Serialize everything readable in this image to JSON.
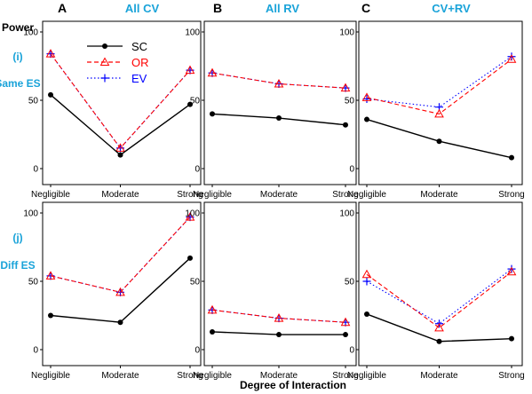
{
  "figure": {
    "ylabel": "Power",
    "xlabel": "Degree of Interaction",
    "title_color": "#1aa3d9",
    "columns": [
      {
        "letter": "A",
        "title": "All CV"
      },
      {
        "letter": "B",
        "title": "All RV"
      },
      {
        "letter": "C",
        "title": "CV+RV"
      }
    ],
    "rows": [
      {
        "tag": "(i)",
        "label": "Same ES"
      },
      {
        "tag": "(j)",
        "label": "Diff ES"
      }
    ],
    "legend": [
      {
        "name": "SC",
        "color": "#000000",
        "marker": "circle",
        "dash": "solid"
      },
      {
        "name": "OR",
        "color": "#ff0000",
        "marker": "triangle",
        "dash": "dashed"
      },
      {
        "name": "EV",
        "color": "#0000ff",
        "marker": "plus",
        "dash": "dotted"
      }
    ]
  },
  "chart_data": [
    {
      "type": "line",
      "panel": "A (i)",
      "categories": [
        "Negligible",
        "Moderate",
        "Strong"
      ],
      "ylim": [
        0,
        100
      ],
      "yticks": [
        0,
        50,
        100
      ],
      "series": [
        {
          "name": "SC",
          "values": [
            54,
            10,
            47
          ]
        },
        {
          "name": "OR",
          "values": [
            84,
            15,
            72
          ]
        },
        {
          "name": "EV",
          "values": [
            84,
            15,
            72
          ]
        }
      ]
    },
    {
      "type": "line",
      "panel": "B (i)",
      "categories": [
        "Negligible",
        "Moderate",
        "Strong"
      ],
      "ylim": [
        0,
        100
      ],
      "yticks": [
        0,
        50,
        100
      ],
      "series": [
        {
          "name": "SC",
          "values": [
            40,
            37,
            32
          ]
        },
        {
          "name": "OR",
          "values": [
            70,
            62,
            59
          ]
        },
        {
          "name": "EV",
          "values": [
            70,
            62,
            59
          ]
        }
      ]
    },
    {
      "type": "line",
      "panel": "C (i)",
      "categories": [
        "Negligible",
        "Moderate",
        "Strong"
      ],
      "ylim": [
        0,
        100
      ],
      "yticks": [
        0,
        50,
        100
      ],
      "series": [
        {
          "name": "SC",
          "values": [
            36,
            20,
            8
          ]
        },
        {
          "name": "OR",
          "values": [
            52,
            40,
            80
          ]
        },
        {
          "name": "EV",
          "values": [
            51,
            45,
            82
          ]
        }
      ]
    },
    {
      "type": "line",
      "panel": "A (j)",
      "categories": [
        "Negligible",
        "Moderate",
        "Strong"
      ],
      "ylim": [
        0,
        100
      ],
      "yticks": [
        0,
        50,
        100
      ],
      "series": [
        {
          "name": "SC",
          "values": [
            25,
            20,
            67
          ]
        },
        {
          "name": "OR",
          "values": [
            54,
            42,
            97
          ]
        },
        {
          "name": "EV",
          "values": [
            54,
            42,
            97
          ]
        }
      ]
    },
    {
      "type": "line",
      "panel": "B (j)",
      "categories": [
        "Negligible",
        "Moderate",
        "Strong"
      ],
      "ylim": [
        0,
        100
      ],
      "yticks": [
        0,
        50,
        100
      ],
      "series": [
        {
          "name": "SC",
          "values": [
            13,
            11,
            11
          ]
        },
        {
          "name": "OR",
          "values": [
            29,
            23,
            20
          ]
        },
        {
          "name": "EV",
          "values": [
            29,
            23,
            20
          ]
        }
      ]
    },
    {
      "type": "line",
      "panel": "C (j)",
      "categories": [
        "Negligible",
        "Moderate",
        "Strong"
      ],
      "ylim": [
        0,
        100
      ],
      "yticks": [
        0,
        50,
        100
      ],
      "series": [
        {
          "name": "SC",
          "values": [
            26,
            6,
            8
          ]
        },
        {
          "name": "OR",
          "values": [
            55,
            16,
            57
          ]
        },
        {
          "name": "EV",
          "values": [
            50,
            19,
            59
          ]
        }
      ]
    }
  ]
}
